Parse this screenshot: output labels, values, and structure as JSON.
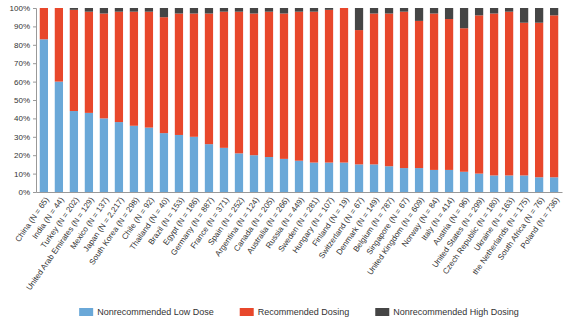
{
  "chart_data": {
    "type": "bar",
    "stacked": true,
    "legend": "bottom",
    "categories": [
      "China (N = 65)",
      "India (N = 44)",
      "Turkey (N = 202)",
      "United Arab Emirates (N = 129)",
      "Mexico (N = 137)",
      "Japan (N = 2,217)",
      "South Korea (N = 298)",
      "Chile (N = 92)",
      "Thailand (N = 40)",
      "Brazil (N = 153)",
      "Egypt (N = 186)",
      "Germany (N = 887)",
      "France (N = 371)",
      "Spain (N = 252)",
      "Argentina (N = 124)",
      "Canada (N = 205)",
      "Australia (N = 266)",
      "Russia (N = 449)",
      "Sweden (N = 281)",
      "Hungary (N = 107)",
      "Finland (N = 19)",
      "Switzerland (N = 67)",
      "Denmark (N = 149)",
      "Belgium (N = 787)",
      "Singapore (N = 67)",
      "United Kingdom (N = 609)",
      "Norway (N = 84)",
      "Italy (N = 414)",
      "Austria (N = 96)",
      "United States (N = 299)",
      "Czech Republic (N = 180)",
      "Ukraine (N = 163)",
      "the Netherlands (N = 175)",
      "South Africa (N = 76)",
      "Poland (N = 736)"
    ],
    "series": [
      {
        "name": "Nonrecommended Low Dose",
        "color": "#6aa8d8",
        "values": [
          83,
          60,
          44,
          43,
          40,
          38,
          36,
          35,
          32,
          31,
          30,
          26,
          24,
          21,
          20,
          19,
          18,
          17,
          16,
          16,
          16,
          15,
          15,
          14,
          13,
          13,
          12,
          12,
          11,
          10,
          9,
          9,
          9,
          8,
          8
        ]
      },
      {
        "name": "Recommended Dosing",
        "color": "#e8472b",
        "values": [
          17,
          40,
          55,
          55,
          57,
          60,
          62,
          63,
          63,
          66,
          67,
          71,
          74,
          77,
          77,
          79,
          79,
          81,
          82,
          83,
          84,
          73,
          82,
          83,
          85,
          80,
          85,
          82,
          78,
          86,
          88,
          89,
          83,
          84,
          88
        ]
      },
      {
        "name": "Nonrecommended High Dosing",
        "color": "#454545",
        "values": [
          0,
          0,
          1,
          2,
          3,
          2,
          2,
          2,
          5,
          3,
          3,
          3,
          2,
          2,
          3,
          2,
          3,
          2,
          2,
          1,
          0,
          12,
          3,
          3,
          2,
          7,
          3,
          6,
          11,
          4,
          3,
          2,
          8,
          8,
          4
        ]
      }
    ],
    "ylim": [
      0,
      100
    ],
    "yticks": [
      {
        "value": 0,
        "label": "0%"
      },
      {
        "value": 10,
        "label": "10%"
      },
      {
        "value": 20,
        "label": "20%"
      },
      {
        "value": 30,
        "label": "30%"
      },
      {
        "value": 40,
        "label": "40%"
      },
      {
        "value": 50,
        "label": "50%"
      },
      {
        "value": 60,
        "label": "60%"
      },
      {
        "value": 70,
        "label": "70%"
      },
      {
        "value": 80,
        "label": "80%"
      },
      {
        "value": 90,
        "label": "90%"
      },
      {
        "value": 100,
        "label": "100%"
      }
    ]
  }
}
